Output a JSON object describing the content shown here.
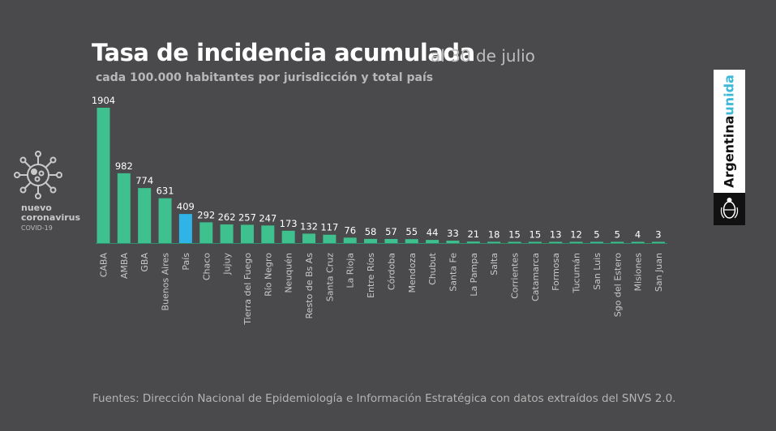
{
  "header": {
    "title": "Tasa de incidencia acumulada",
    "title_date": "al 30 de julio",
    "subtitle": "cada 100.000 habitantes por jurisdicción y total país"
  },
  "logo": {
    "icon": "coronavirus-icon",
    "line1": "nuevo",
    "line2": "coronavirus",
    "line3": "COVID-19"
  },
  "brand": {
    "word1": "Argentina",
    "word2": "unida",
    "emblem": "national-coat-of-arms-icon"
  },
  "footer": {
    "source": "Fuentes: Dirección Nacional de Epidemiología e Información Estratégica con datos extraídos del SNVS 2.0."
  },
  "colors": {
    "background": "#4a4a4c",
    "bar": "#3fc08f",
    "highlight": "#2fb4e8",
    "baseline": "#2e8e6e"
  },
  "chart_data": {
    "type": "bar",
    "title": "Tasa de incidencia acumulada",
    "categories": [
      "CABA",
      "AMBA",
      "GBA",
      "Buenos Aires",
      "País",
      "Chaco",
      "Jujuy",
      "Tierra del Fuego",
      "Río Negro",
      "Neuquén",
      "Resto de Bs As",
      "Santa Cruz",
      "La Rioja",
      "Entre Ríos",
      "Córdoba",
      "Mendoza",
      "Chubut",
      "Santa Fe",
      "La Pampa",
      "Salta",
      "Corrientes",
      "Catamarca",
      "Formosa",
      "Tucumán",
      "San Luis",
      "Sgo del Estero",
      "Misiones",
      "San Juan"
    ],
    "values": [
      1904,
      982,
      774,
      631,
      409,
      292,
      262,
      257,
      247,
      173,
      132,
      117,
      76,
      58,
      57,
      55,
      44,
      33,
      21,
      18,
      15,
      15,
      13,
      12,
      5,
      5,
      4,
      3
    ],
    "highlight": "País",
    "ylim": [
      0,
      1904
    ],
    "grid": false,
    "legend": "none",
    "xlabel": "",
    "ylabel": ""
  }
}
